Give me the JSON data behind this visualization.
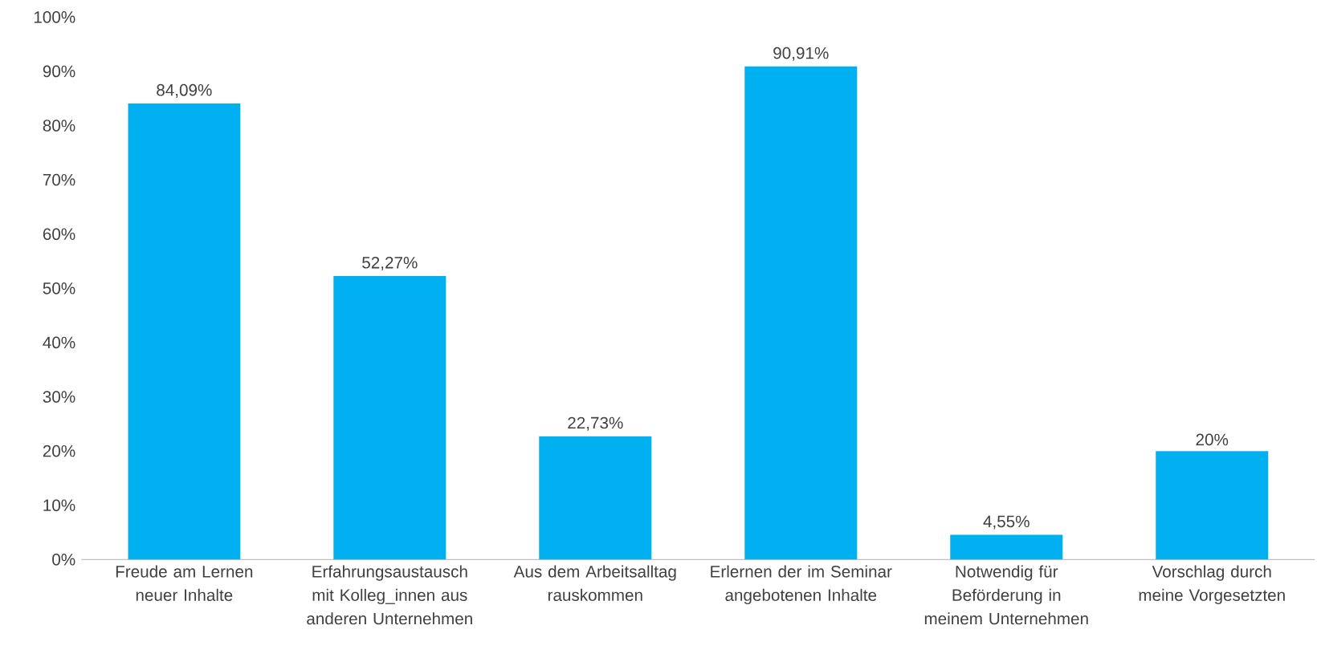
{
  "chart_data": {
    "type": "bar",
    "categories": [
      "Freude am Lernen neuer Inhalte",
      "Erfahrungsaustausch mit Kolleg_innen aus anderen Unternehmen",
      "Aus dem Arbeitsalltag rauskommen",
      "Erlernen der im Seminar angebotenen Inhalte",
      "Notwendig für Beförderung in meinem Unternehmen",
      "Vorschlag durch meine Vorgesetzten"
    ],
    "values": [
      84.09,
      52.27,
      22.73,
      90.91,
      4.55,
      20
    ],
    "value_labels": [
      "84,09%",
      "52,27%",
      "22,73%",
      "90,91%",
      "4,55%",
      "20%"
    ],
    "color": "#00b0f0",
    "ylim": [
      0,
      100
    ],
    "yticks": [
      {
        "value": 0,
        "label": "0%"
      },
      {
        "value": 10,
        "label": "10%"
      },
      {
        "value": 20,
        "label": "20%"
      },
      {
        "value": 30,
        "label": "30%"
      },
      {
        "value": 40,
        "label": "40%"
      },
      {
        "value": 50,
        "label": "50%"
      },
      {
        "value": 60,
        "label": "60%"
      },
      {
        "value": 70,
        "label": "70%"
      },
      {
        "value": 80,
        "label": "80%"
      },
      {
        "value": 90,
        "label": "90%"
      },
      {
        "value": 100,
        "label": "100%"
      }
    ],
    "grid": false
  }
}
